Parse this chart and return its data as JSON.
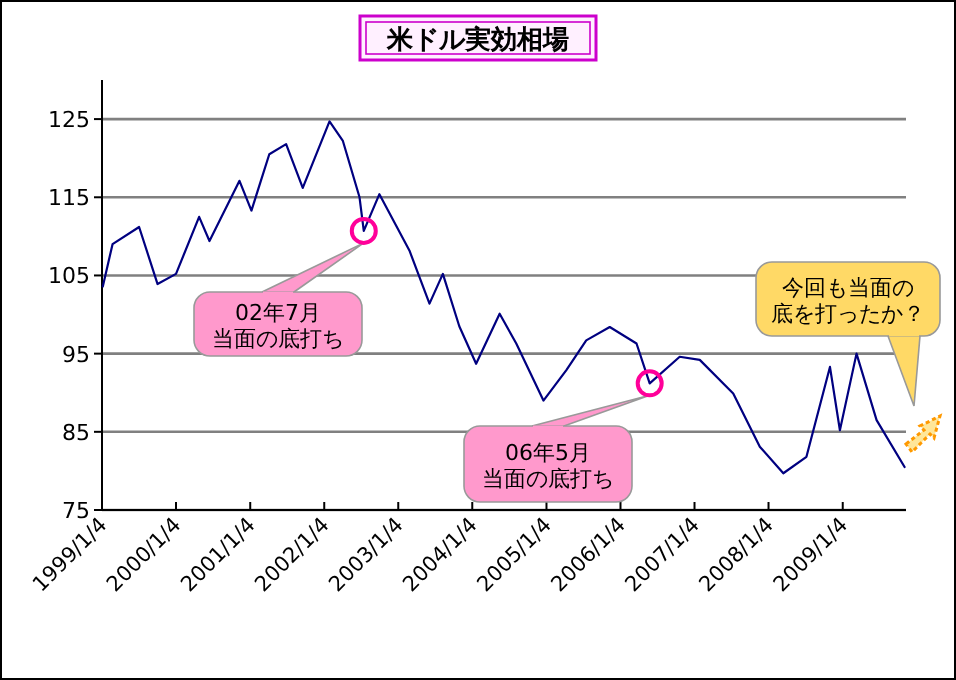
{
  "chart_data": {
    "type": "line",
    "title": "米ドル実効相場",
    "x": [
      "1999-01-08",
      "1999-02-25",
      "1999-07-06",
      "1999-10-05",
      "2000-01-04",
      "2000-04-27",
      "2000-06-17",
      "2000-11-12",
      "2001-01-10",
      "2001-04-08",
      "2001-06-30",
      "2001-09-20",
      "2002-01-30",
      "2002-04-06",
      "2002-06-27",
      "2002-07-18",
      "2002-10-03",
      "2003-02-28",
      "2003-06-07",
      "2003-08-12",
      "2003-11-01",
      "2004-01-23",
      "2004-05-18",
      "2004-08-08",
      "2004-12-20",
      "2005-04-12",
      "2005-07-19",
      "2005-11-12",
      "2006-03-24",
      "2006-05-28",
      "2006-10-23",
      "2007-01-30",
      "2007-07-14",
      "2007-11-22",
      "2008-03-17",
      "2008-07-09",
      "2008-11-02",
      "2008-12-21",
      "2009-03-13",
      "2009-06-20",
      "2009-11-05"
    ],
    "series": [
      {
        "color": "#000080",
        "values": [
          103.6,
          109,
          111.2,
          103.9,
          105.2,
          112.5,
          109.4,
          117.1,
          113.3,
          120.5,
          121.8,
          116.2,
          124.7,
          122.2,
          115,
          110.7,
          115.4,
          108.2,
          101.4,
          105.2,
          98.5,
          93.7,
          100.1,
          96.3,
          89,
          92.9,
          96.7,
          98.4,
          96.3,
          91.2,
          94.6,
          94.2,
          89.9,
          83.1,
          79.7,
          81.8,
          93.3,
          85.2,
          95,
          86.5,
          80.5
        ]
      }
    ],
    "xlim": [
      "1999-01-04",
      "2009-11-12"
    ],
    "xticks": [
      {
        "value": "1999-01-04",
        "label": "1999/1/4"
      },
      {
        "value": "2000-01-04",
        "label": "2000/1/4"
      },
      {
        "value": "2001-01-04",
        "label": "2001/1/4"
      },
      {
        "value": "2002-01-04",
        "label": "2002/1/4"
      },
      {
        "value": "2003-01-04",
        "label": "2003/1/4"
      },
      {
        "value": "2004-01-04",
        "label": "2004/1/4"
      },
      {
        "value": "2005-01-04",
        "label": "2005/1/4"
      },
      {
        "value": "2006-01-04",
        "label": "2006/1/4"
      },
      {
        "value": "2007-01-04",
        "label": "2007/1/4"
      },
      {
        "value": "2008-01-04",
        "label": "2008/1/4"
      },
      {
        "value": "2009-01-04",
        "label": "2009/1/4"
      }
    ],
    "ylim": [
      75,
      130
    ],
    "yticks": [
      75,
      85,
      95,
      105,
      115,
      125
    ],
    "grid": "y",
    "marker": "none",
    "line_style": "solid",
    "annotations": [
      {
        "text": "02年7月当面の底打ち",
        "x": "2002-07-18",
        "y": 110.7
      },
      {
        "text": "06年5月当面の底打ち",
        "x": "2006-05-28",
        "y": 91.2
      },
      "今回も当面の底を打ったか？"
    ]
  }
}
